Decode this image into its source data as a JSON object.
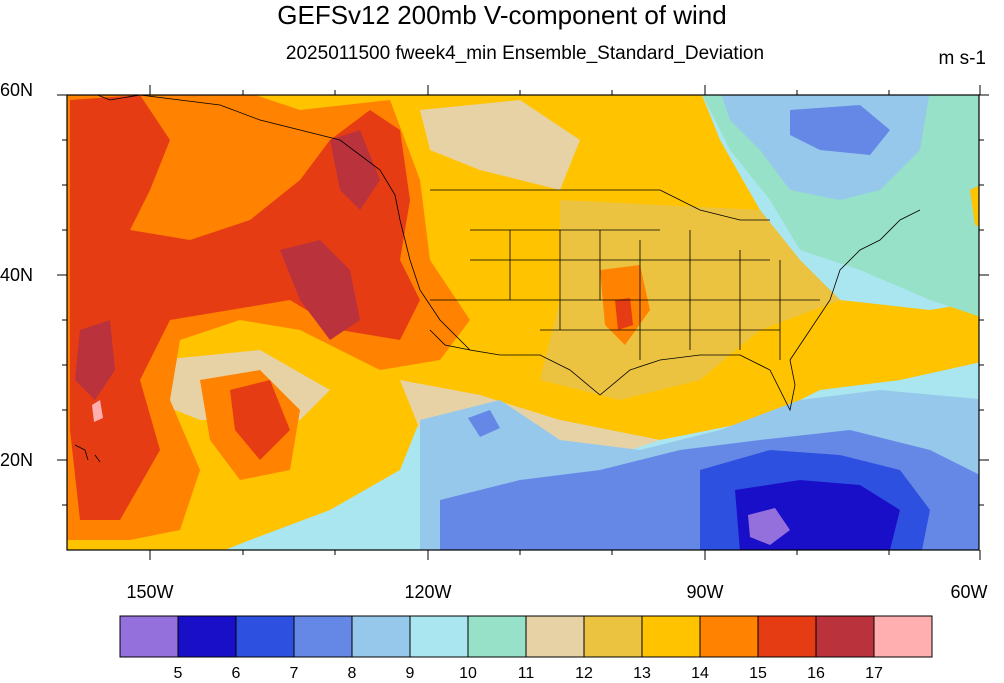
{
  "title": "GEFSv12 200mb V-component of wind",
  "subtitle": "2025011500 fweek4_min Ensemble_Standard_Deviation",
  "units": "m s-1",
  "map": {
    "lat_labels": [
      "60N",
      "40N",
      "20N"
    ],
    "lon_labels": [
      "150W",
      "120W",
      "90W",
      "60W"
    ],
    "region": "North America / Eastern Pacific / Western Atlantic"
  },
  "colorbar": {
    "labels": [
      "5",
      "6",
      "7",
      "8",
      "9",
      "10",
      "11",
      "12",
      "13",
      "14",
      "15",
      "16",
      "17"
    ],
    "colors": [
      "#9370db",
      "#1a0fc8",
      "#2e50e0",
      "#6587e6",
      "#96c8ec",
      "#aae6f0",
      "#96e1c8",
      "#e6d2a5",
      "#ebc341",
      "#ffc300",
      "#ff8200",
      "#e63c14",
      "#b9323c",
      "#ffafaf"
    ]
  }
}
